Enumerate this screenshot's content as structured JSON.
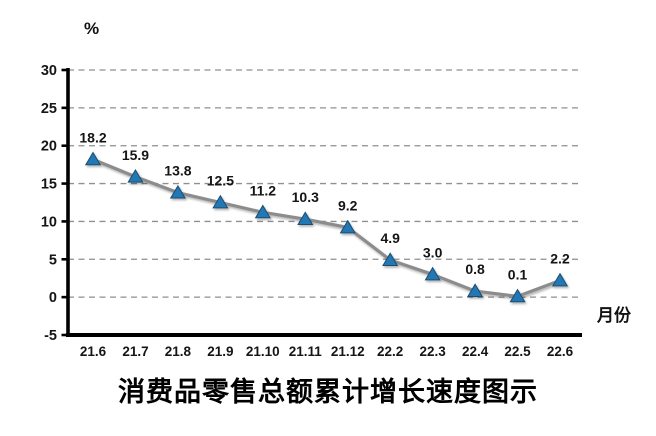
{
  "chart_data": {
    "type": "line",
    "title": "消费品零售总额累计增长速度图示",
    "ylabel": "%",
    "xlabel": "月份",
    "categories": [
      "21.6",
      "21.7",
      "21.8",
      "21.9",
      "21.10",
      "21.11",
      "21.12",
      "22.2",
      "22.3",
      "22.4",
      "22.5",
      "22.6"
    ],
    "values": [
      18.2,
      15.9,
      13.8,
      12.5,
      11.2,
      10.3,
      9.2,
      4.9,
      3.0,
      0.8,
      0.1,
      2.2
    ],
    "value_labels": [
      "18.2",
      "15.9",
      "13.8",
      "12.5",
      "11.2",
      "10.3",
      "9.2",
      "4.9",
      "3.0",
      "0.8",
      "0.1",
      "2.2"
    ],
    "ylim": [
      -5,
      30
    ],
    "yticks": [
      -5,
      0,
      5,
      10,
      15,
      20,
      25,
      30
    ],
    "grid": "horizontal-dashed",
    "legend": "none",
    "marker": "triangle-up",
    "colors": {
      "line": "#8c8c8c",
      "marker_fill": "#2478b4",
      "marker_edge": "#1b4d71",
      "grid": "#8f8f8f",
      "axis": "#000000",
      "text": "#151515"
    }
  }
}
